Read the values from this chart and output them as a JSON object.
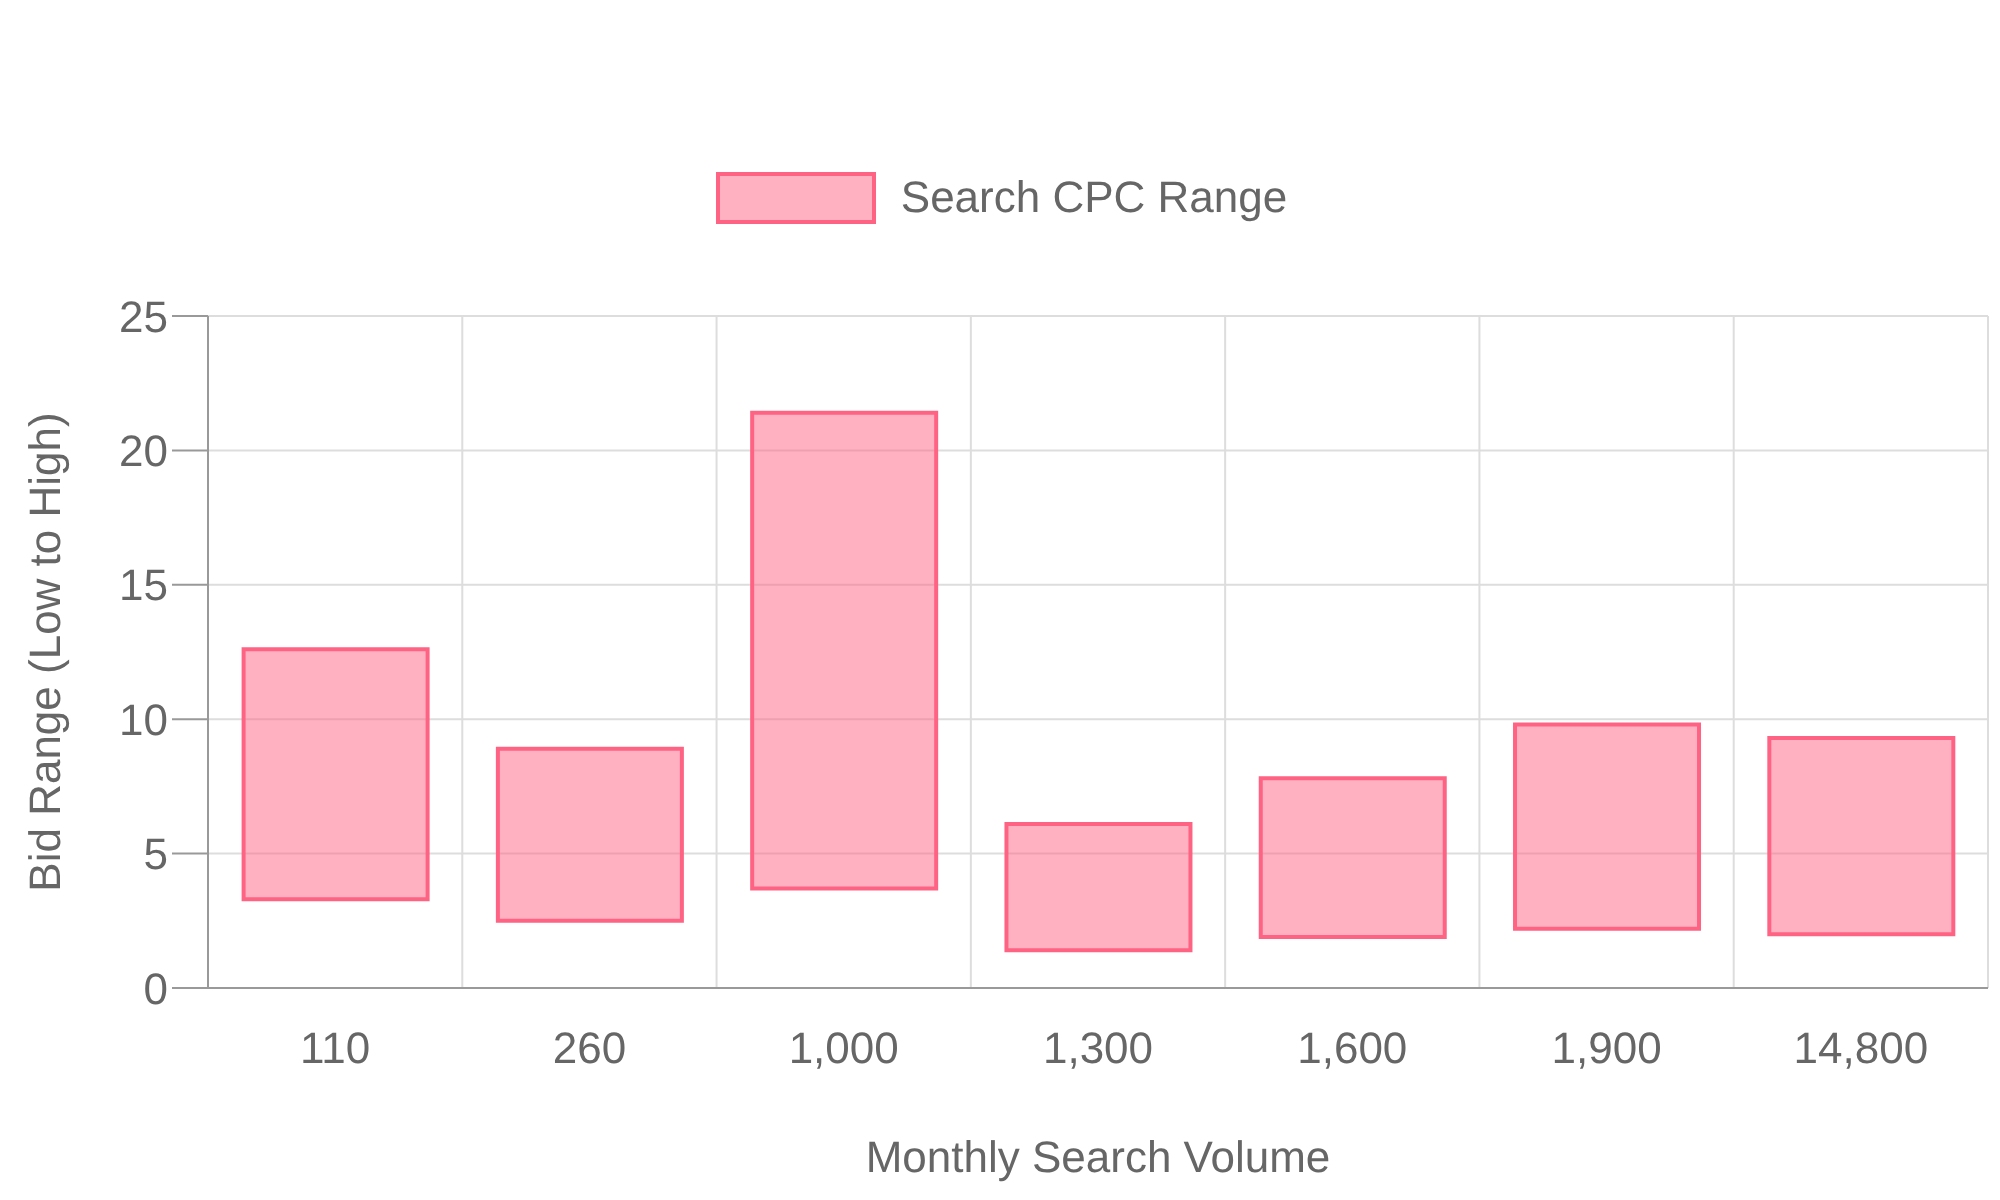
{
  "chart_data": {
    "type": "bar",
    "xlabel": "Monthly Search Volume",
    "ylabel": "Bid Range (Low to High)",
    "categories": [
      "110",
      "260",
      "1,000",
      "1,300",
      "1,600",
      "1,900",
      "14,800"
    ],
    "series": [
      {
        "name": "Search CPC Range",
        "color": "#ff6384",
        "values": [
          9.3,
          6.4,
          17.7,
          4.7,
          5.9,
          7.6,
          7.3
        ],
        "base": [
          3.3,
          2.5,
          3.7,
          1.4,
          1.9,
          2.2,
          2.0
        ]
      }
    ],
    "ylim": [
      0,
      25
    ],
    "yticks": [
      0,
      5,
      10,
      15,
      20,
      25
    ],
    "grid": true,
    "legend": "top"
  }
}
